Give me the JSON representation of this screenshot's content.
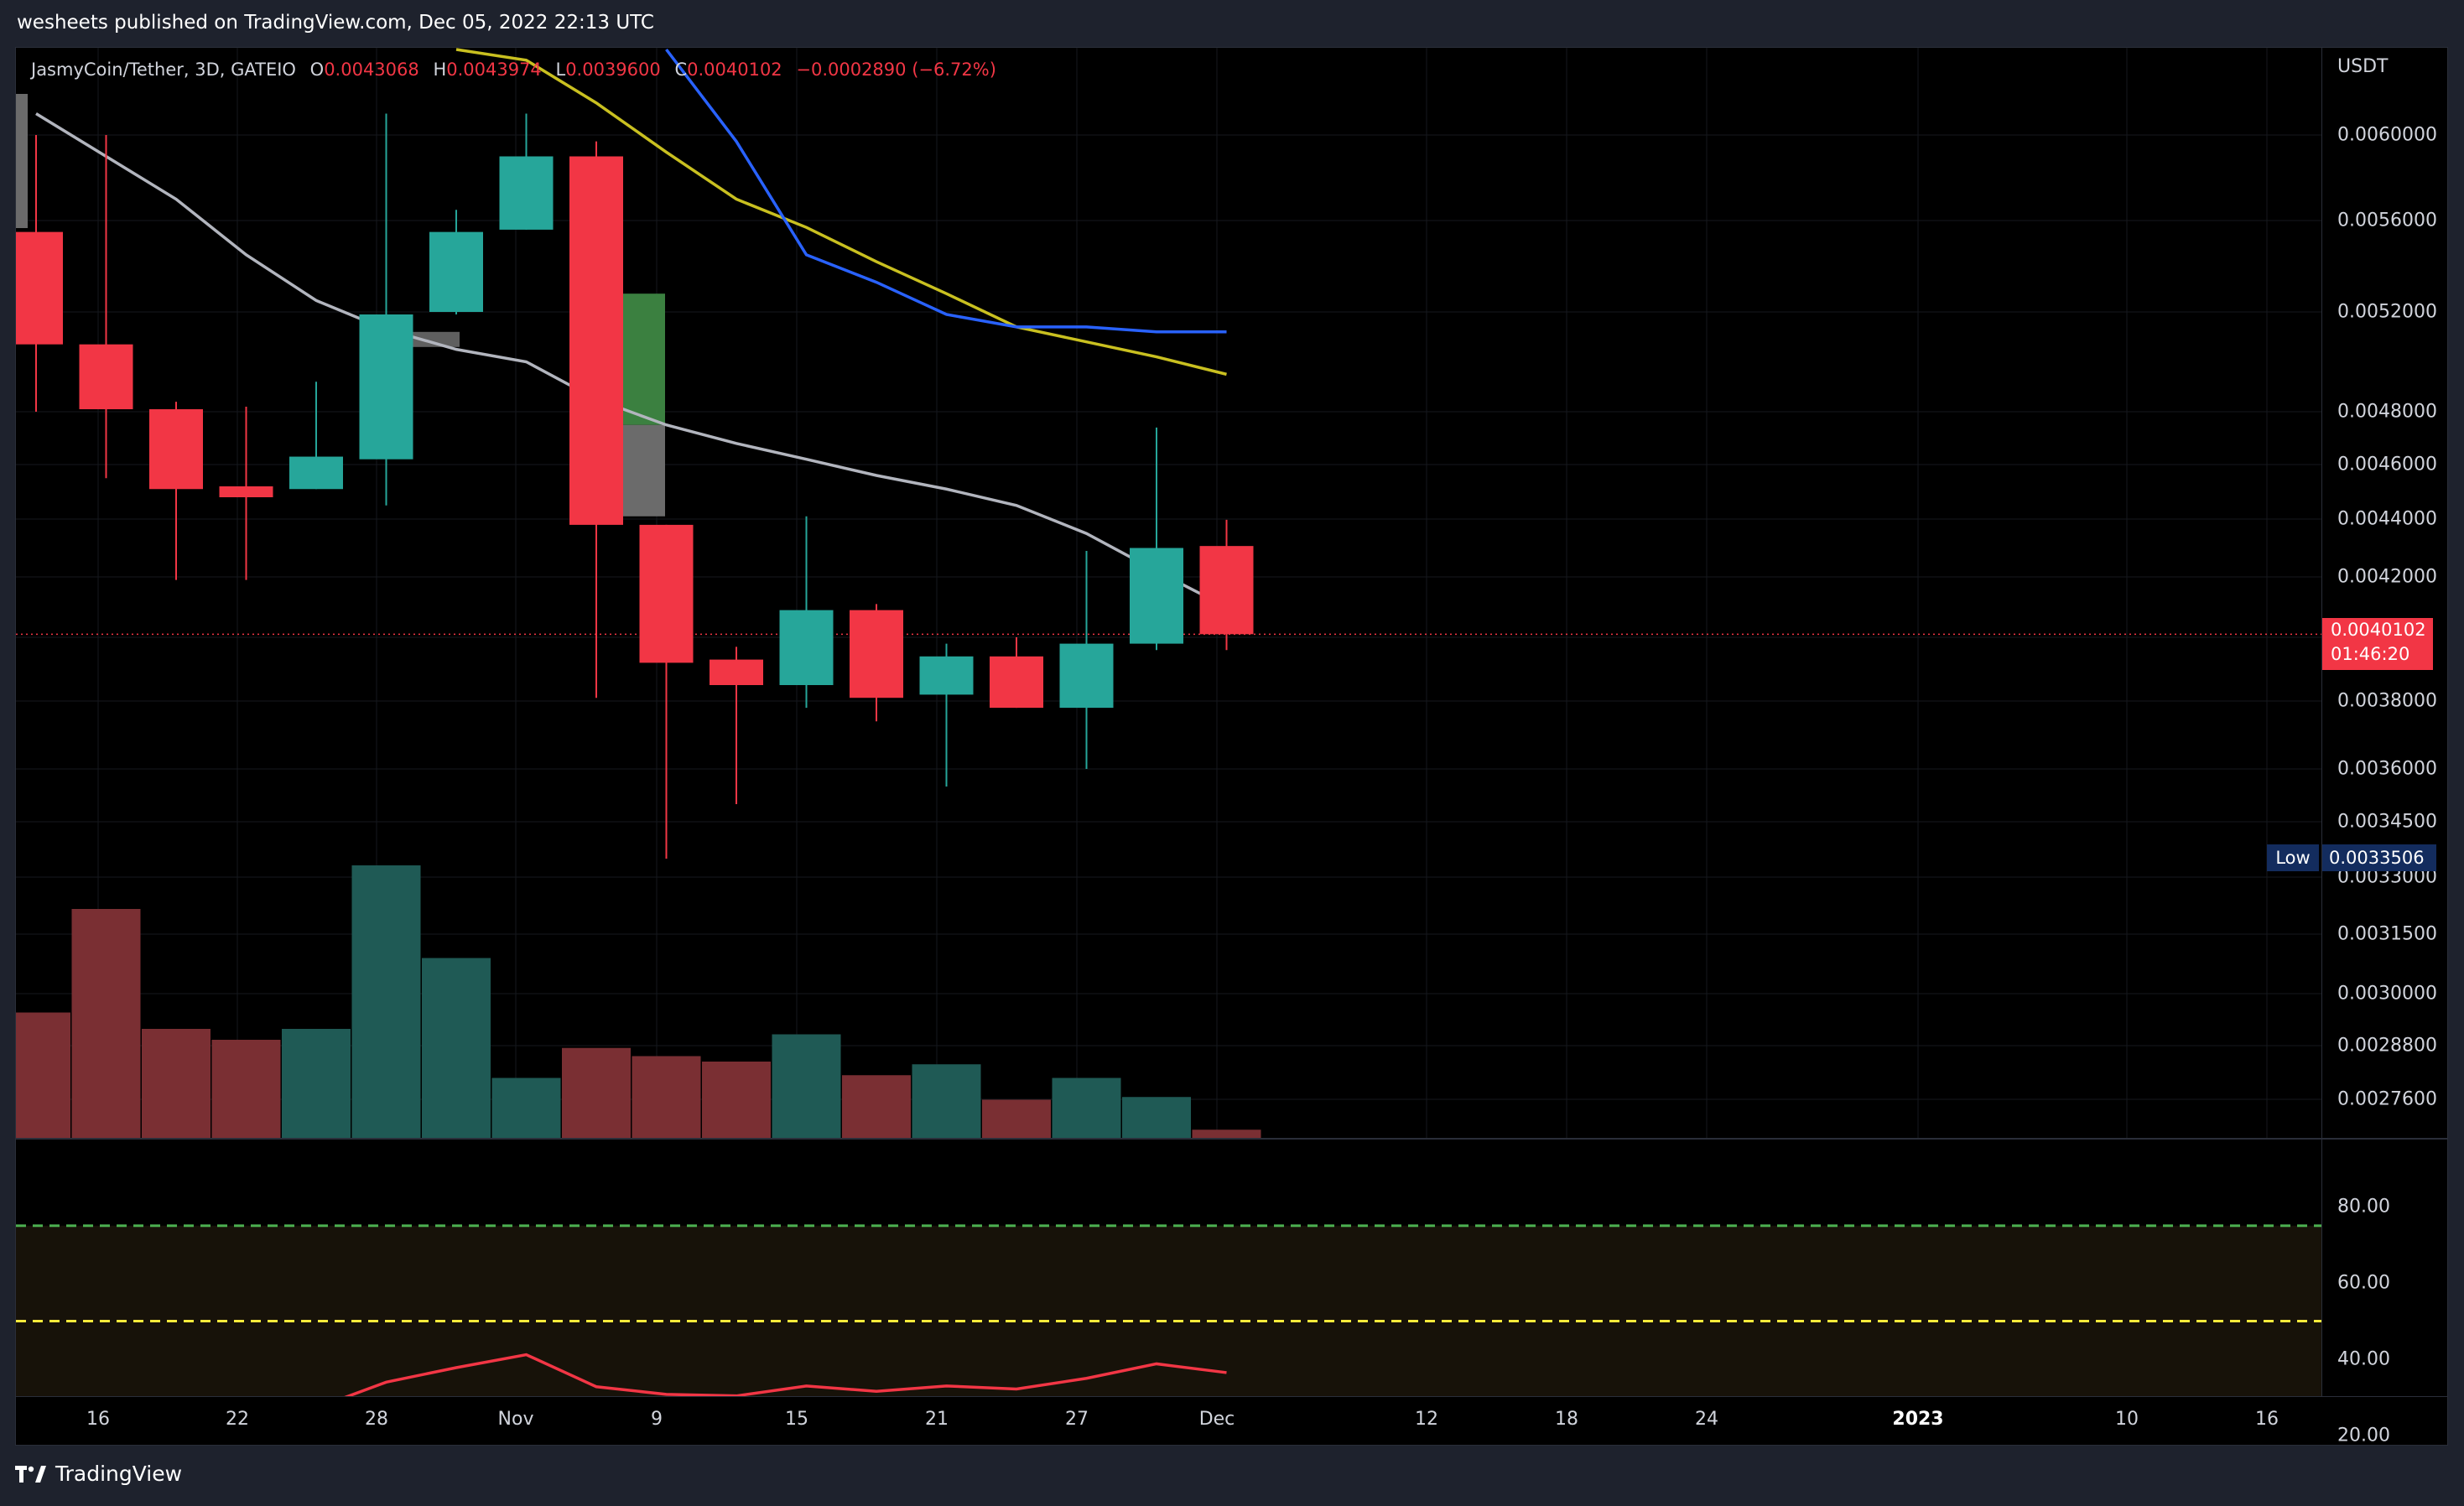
{
  "header": {
    "publisher_text": "wesheets published on TradingView.com, Dec 05, 2022 22:13 UTC"
  },
  "legend": {
    "symbol": "JasmyCoin/Tether, 3D, GATEIO",
    "o_label": "O",
    "o_value": "0.0043068",
    "h_label": "H",
    "h_value": "0.0043974",
    "l_label": "L",
    "l_value": "0.0039600",
    "c_label": "C",
    "c_value": "0.0040102",
    "change": "−0.0002890 (−6.72%)"
  },
  "price_scale": {
    "currency": "USDT",
    "labels": [
      "0.0060000",
      "0.0056000",
      "0.0052000",
      "0.0048000",
      "0.0046000",
      "0.0044000",
      "0.0042000",
      "0.0038000",
      "0.0036000",
      "0.0034500",
      "0.0033000",
      "0.0031500",
      "0.0030000",
      "0.0028800",
      "0.0027600"
    ],
    "last_price": "0.0040102",
    "countdown": "01:46:20",
    "low_tag": "Low",
    "low_value": "0.0033506"
  },
  "rsi_scale": {
    "labels": [
      "80.00",
      "60.00",
      "40.00",
      "20.00"
    ]
  },
  "time_axis": {
    "labels": [
      "16",
      "22",
      "28",
      "Nov",
      "9",
      "15",
      "21",
      "27",
      "Dec",
      "12",
      "18",
      "24",
      "2023",
      "10",
      "16"
    ],
    "bold": [
      "2023"
    ]
  },
  "footer": {
    "brand": "TradingView"
  },
  "colors": {
    "up": "#26a69a",
    "down": "#f23645",
    "ma_gray": "#b2b5be",
    "ma_blue": "#2962ff",
    "ma_yellow": "#c9c020",
    "rsi_line": "#f23645",
    "rsi_band": "#2a2010"
  },
  "chart_data": {
    "type": "candlestick",
    "symbol": "JasmyCoin/Tether",
    "interval": "3D",
    "exchange": "GATEIO",
    "candles": [
      {
        "o": 0.00555,
        "h": 0.006,
        "l": 0.0048,
        "c": 0.00507
      },
      {
        "o": 0.00507,
        "h": 0.006,
        "l": 0.00455,
        "c": 0.00481
      },
      {
        "o": 0.00481,
        "h": 0.00484,
        "l": 0.00419,
        "c": 0.00451
      },
      {
        "o": 0.00452,
        "h": 0.00482,
        "l": 0.00419,
        "c": 0.00448
      },
      {
        "o": 0.00451,
        "h": 0.00492,
        "l": 0.00451,
        "c": 0.00463
      },
      {
        "o": 0.00462,
        "h": 0.0061,
        "l": 0.00445,
        "c": 0.00519
      },
      {
        "o": 0.0052,
        "h": 0.00565,
        "l": 0.00519,
        "c": 0.00555
      },
      {
        "o": 0.00556,
        "h": 0.0061,
        "l": 0.00556,
        "c": 0.0059
      },
      {
        "o": 0.0059,
        "h": 0.00597,
        "l": 0.00381,
        "c": 0.00438
      },
      {
        "o": 0.00438,
        "h": 0.00438,
        "l": 0.00335,
        "c": 0.00392
      },
      {
        "o": 0.00393,
        "h": 0.00397,
        "l": 0.0035,
        "c": 0.00385
      },
      {
        "o": 0.00385,
        "h": 0.00441,
        "l": 0.00378,
        "c": 0.00409
      },
      {
        "o": 0.00409,
        "h": 0.00411,
        "l": 0.00374,
        "c": 0.00381
      },
      {
        "o": 0.00382,
        "h": 0.00398,
        "l": 0.00355,
        "c": 0.00394
      },
      {
        "o": 0.00394,
        "h": 0.004,
        "l": 0.00378,
        "c": 0.00378
      },
      {
        "o": 0.00378,
        "h": 0.00429,
        "l": 0.0036,
        "c": 0.00398
      },
      {
        "o": 0.00398,
        "h": 0.00474,
        "l": 0.00396,
        "c": 0.0043
      },
      {
        "o": 0.0043068,
        "h": 0.0043974,
        "l": 0.00396,
        "c": 0.0040102
      }
    ],
    "volume": [
      0.46,
      0.84,
      0.4,
      0.36,
      0.4,
      1.0,
      0.66,
      0.22,
      0.33,
      0.3,
      0.28,
      0.38,
      0.23,
      0.27,
      0.14,
      0.22,
      0.15,
      0.03
    ],
    "ma_gray": [
      0.0061,
      0.0059,
      0.0057,
      0.00545,
      0.00525,
      0.00513,
      0.00505,
      0.005,
      0.00485,
      0.00475,
      0.00468,
      0.00462,
      0.00456,
      0.00451,
      0.00445,
      0.00435,
      0.00422,
      0.0041
    ],
    "ma_yellow": [
      null,
      null,
      null,
      null,
      null,
      null,
      0.0064,
      0.00635,
      0.00615,
      0.00592,
      0.0057,
      0.00557,
      0.00542,
      0.00528,
      0.00514,
      0.00508,
      0.00502,
      0.00495
    ],
    "ma_blue": [
      null,
      null,
      null,
      null,
      null,
      null,
      null,
      null,
      null,
      0.0064,
      0.00597,
      0.00545,
      0.00533,
      0.00519,
      0.00514,
      0.00514,
      0.00512,
      0.00512
    ],
    "rsi": [
      28.5,
      27.5,
      26.0,
      25.8,
      27.2,
      34.0,
      37.8,
      41.2,
      32.8,
      30.8,
      30.4,
      33.0,
      31.6,
      33.0,
      32.2,
      35.0,
      38.8,
      36.5
    ],
    "rsi_levels": {
      "upper": 75,
      "middle": 50,
      "lower": 25
    },
    "price_range": [
      0.0027,
      0.0062
    ],
    "rsi_range": [
      20,
      80
    ]
  }
}
